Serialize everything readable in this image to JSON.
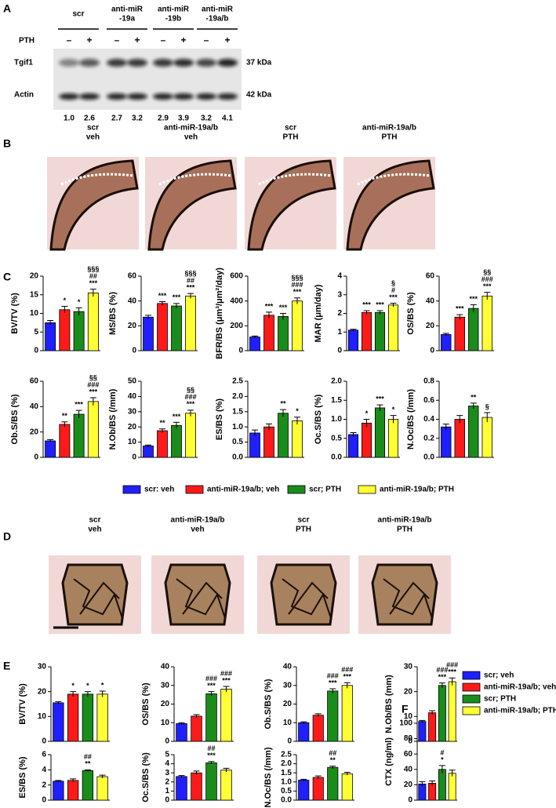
{
  "panel_labels": [
    "A",
    "B",
    "C",
    "D",
    "E",
    "F"
  ],
  "blot": {
    "groups": [
      [
        "scr"
      ],
      [
        "anti-miR",
        "-19a"
      ],
      [
        "anti-miR",
        "-19b"
      ],
      [
        "anti-miR",
        "-19a/b"
      ]
    ],
    "pth_label": "PTH",
    "pth_signs": [
      "–",
      "+",
      "–",
      "+",
      "–",
      "+",
      "–",
      "+"
    ],
    "rows": [
      "Tgif1",
      "Actin"
    ],
    "sizes": [
      "37 kDa",
      "42 kDa"
    ],
    "ratios": [
      "1.0",
      "2.6",
      "2.7",
      "3.2",
      "2.9",
      "3.9",
      "3.2",
      "4.1"
    ]
  },
  "histology_B": [
    [
      "scr",
      "veh"
    ],
    [
      "anti-miR-19a/b",
      "veh"
    ],
    [
      "scr",
      "PTH"
    ],
    [
      "anti-miR-19a/b",
      "PTH"
    ]
  ],
  "histology_D": [
    [
      "scr",
      "veh"
    ],
    [
      "anti-miR-19a/b",
      "veh"
    ],
    [
      "scr",
      "PTH"
    ],
    [
      "anti-miR-19a/b",
      "PTH"
    ]
  ],
  "colors": [
    "#1f1fff",
    "#ff1a1a",
    "#1a8c1a",
    "#ffff33"
  ],
  "legend_C": [
    "scr: veh",
    "anti-miR-19a/b; veh",
    "scr; PTH",
    "anti-miR-19a/b; PTH"
  ],
  "legend_E": [
    "scr; veh",
    "anti-miR-19a/b; veh",
    "scr; PTH",
    "anti-miR-19a/b; PTH"
  ],
  "chart_data": [
    {
      "type": "bar",
      "ylabel": "BV/TV (%)",
      "values": [
        7.5,
        11,
        10.5,
        15.5
      ],
      "errors": [
        0.6,
        0.9,
        1,
        1
      ],
      "ylim": [
        0,
        20
      ],
      "yticks": [
        0,
        5,
        10,
        15,
        20
      ],
      "annotations": [
        [],
        [
          "*"
        ],
        [
          "*"
        ],
        [
          "§§§",
          "##",
          "***"
        ]
      ]
    },
    {
      "type": "bar",
      "ylabel": "MS/BS (%)",
      "values": [
        27,
        38,
        36,
        44
      ],
      "errors": [
        1.5,
        1.5,
        2,
        2
      ],
      "ylim": [
        0,
        60
      ],
      "yticks": [
        0,
        20,
        40,
        60
      ],
      "annotations": [
        [],
        [
          "***"
        ],
        [
          "***"
        ],
        [
          "§§§",
          "##",
          "***"
        ]
      ]
    },
    {
      "type": "bar",
      "ylabel": "BFR/BS (μm³/μm²/day)",
      "values": [
        110,
        285,
        275,
        400
      ],
      "errors": [
        8,
        25,
        25,
        25
      ],
      "ylim": [
        0,
        600
      ],
      "yticks": [
        0,
        200,
        400,
        600
      ],
      "annotations": [
        [],
        [
          "***"
        ],
        [
          "***"
        ],
        [
          "§§§",
          "###",
          "***"
        ]
      ]
    },
    {
      "type": "bar",
      "ylabel": "MAR (μm/day)",
      "values": [
        1.1,
        2.05,
        2.05,
        2.45
      ],
      "errors": [
        0.05,
        0.1,
        0.1,
        0.1
      ],
      "ylim": [
        0,
        4
      ],
      "yticks": [
        0,
        1,
        2,
        3,
        4
      ],
      "annotations": [
        [],
        [
          "***"
        ],
        [
          "***"
        ],
        [
          "§",
          "#",
          "***"
        ]
      ]
    },
    {
      "type": "bar",
      "ylabel": "OS/BS (%)",
      "values": [
        13,
        27,
        34,
        44
      ],
      "errors": [
        1,
        2,
        3,
        3
      ],
      "ylim": [
        0,
        60
      ],
      "yticks": [
        0,
        20,
        40,
        60
      ],
      "annotations": [
        [],
        [
          "***"
        ],
        [
          "***"
        ],
        [
          "§§",
          "###",
          "***"
        ]
      ]
    },
    {
      "type": "bar",
      "ylabel": "Ob.S/BS (%)",
      "values": [
        13,
        26,
        34,
        44
      ],
      "errors": [
        1,
        2,
        3,
        3
      ],
      "ylim": [
        0,
        60
      ],
      "yticks": [
        0,
        20,
        40,
        60
      ],
      "annotations": [
        [],
        [
          "**"
        ],
        [
          "***"
        ],
        [
          "§§",
          "###",
          "***"
        ]
      ]
    },
    {
      "type": "bar",
      "ylabel": "N.Ob/BS (/mm)",
      "values": [
        7.5,
        17.5,
        21,
        29
      ],
      "errors": [
        0.6,
        1.2,
        2,
        2
      ],
      "ylim": [
        0,
        50
      ],
      "yticks": [
        0,
        10,
        20,
        30,
        40,
        50
      ],
      "annotations": [
        [],
        [
          "**"
        ],
        [
          "***"
        ],
        [
          "§§",
          "###",
          "***"
        ]
      ]
    },
    {
      "type": "bar",
      "ylabel": "ES/BS (%)",
      "values": [
        0.8,
        1.0,
        1.45,
        1.2
      ],
      "errors": [
        0.1,
        0.1,
        0.12,
        0.12
      ],
      "ylim": [
        0,
        2.5
      ],
      "yticks": [
        {
          "value": 0,
          "label": "0.0"
        },
        0.5,
        {
          "value": 1,
          "label": "1.0"
        },
        1.5,
        {
          "value": 2,
          "label": "2.0"
        },
        2.5
      ],
      "annotations": [
        [],
        [],
        [
          "**"
        ],
        [
          "*"
        ]
      ]
    },
    {
      "type": "bar",
      "ylabel": "Oc.S/BS (%)",
      "values": [
        0.6,
        0.9,
        1.3,
        1.0
      ],
      "errors": [
        0.05,
        0.1,
        0.08,
        0.1
      ],
      "ylim": [
        0,
        2
      ],
      "yticks": [
        {
          "value": 0,
          "label": "0.0"
        },
        0.5,
        {
          "value": 1,
          "label": "1.0"
        },
        1.5,
        {
          "value": 2,
          "label": "2.0"
        }
      ],
      "annotations": [
        [],
        [
          "*"
        ],
        [
          "***"
        ],
        [
          "*"
        ]
      ]
    },
    {
      "type": "bar",
      "ylabel": "N.Oc/BS (/mm)",
      "values": [
        0.32,
        0.4,
        0.54,
        0.42
      ],
      "errors": [
        0.03,
        0.04,
        0.03,
        0.05
      ],
      "ylim": [
        0,
        0.8
      ],
      "yticks": [
        {
          "value": 0,
          "label": "0.0"
        },
        0.2,
        0.4,
        0.6,
        0.8
      ],
      "annotations": [
        [],
        [],
        [
          "**"
        ],
        [
          "§"
        ]
      ]
    },
    {
      "type": "bar",
      "ylabel": "BV/TV (%)",
      "values": [
        15.5,
        19,
        19,
        19
      ],
      "errors": [
        0.5,
        1,
        1,
        1.2
      ],
      "ylim": [
        0,
        30
      ],
      "yticks": [
        0,
        10,
        20,
        30
      ],
      "annotations": [
        [],
        [
          "*"
        ],
        [
          "*"
        ],
        [
          "*"
        ]
      ]
    },
    {
      "type": "bar",
      "ylabel": "OS/BS (%)",
      "values": [
        9.5,
        13.5,
        25.5,
        28
      ],
      "errors": [
        0.5,
        0.8,
        1.2,
        1.5
      ],
      "ylim": [
        0,
        40
      ],
      "yticks": [
        0,
        10,
        20,
        30,
        40
      ],
      "annotations": [
        [],
        [],
        [
          "###",
          "***"
        ],
        [
          "###",
          "***"
        ]
      ]
    },
    {
      "type": "bar",
      "ylabel": "Ob.S/BS (%)",
      "values": [
        10,
        14,
        27,
        30
      ],
      "errors": [
        0.5,
        0.8,
        1.2,
        1.5
      ],
      "ylim": [
        0,
        40
      ],
      "yticks": [
        0,
        10,
        20,
        30,
        40
      ],
      "annotations": [
        [],
        [],
        [
          "###",
          "***"
        ],
        [
          "###",
          "***"
        ]
      ]
    },
    {
      "type": "bar",
      "ylabel": "N.Ob/BS (mm)",
      "values": [
        8,
        11.5,
        22.5,
        24
      ],
      "errors": [
        0.4,
        0.8,
        1,
        1.5
      ],
      "ylim": [
        0,
        30
      ],
      "yticks": [
        0,
        10,
        20,
        30
      ],
      "annotations": [
        [],
        [],
        [
          "###",
          "***"
        ],
        [
          "###",
          "***"
        ]
      ]
    },
    {
      "type": "bar",
      "ylabel": "ES/BS (%)",
      "values": [
        2.5,
        2.6,
        3.9,
        3.1
      ],
      "errors": [
        0.1,
        0.2,
        0.1,
        0.2
      ],
      "ylim": [
        0,
        6
      ],
      "yticks": [
        0,
        2,
        4,
        6
      ],
      "annotations": [
        [],
        [],
        [
          "##",
          "**"
        ],
        []
      ]
    },
    {
      "type": "bar",
      "ylabel": "Oc.S/BS (%)",
      "values": [
        2.6,
        3.0,
        4.1,
        3.3
      ],
      "errors": [
        0.1,
        0.2,
        0.15,
        0.2
      ],
      "ylim": [
        0,
        5
      ],
      "yticks": [
        0,
        1,
        2,
        3,
        4,
        5
      ],
      "annotations": [
        [],
        [],
        [
          "##",
          "***"
        ],
        []
      ]
    },
    {
      "type": "bar",
      "ylabel": "N.Oc/BS (/mm)",
      "values": [
        1.1,
        1.25,
        1.8,
        1.45
      ],
      "errors": [
        0.05,
        0.08,
        0.07,
        0.08
      ],
      "ylim": [
        0,
        2.5
      ],
      "yticks": [
        {
          "value": 0,
          "label": "0.0"
        },
        0.5,
        {
          "value": 1,
          "label": "1.0"
        },
        1.5,
        {
          "value": 2,
          "label": "2.0"
        },
        2.5
      ],
      "annotations": [
        [],
        [],
        [
          "##",
          "**"
        ],
        []
      ]
    },
    {
      "type": "bar",
      "ylabel": "CTX (ng/ml)",
      "values": [
        21,
        22,
        40,
        35
      ],
      "errors": [
        3,
        3,
        5,
        4
      ],
      "ylim": [
        0,
        100
      ],
      "yticks": [
        0,
        20,
        40,
        60,
        80,
        100
      ],
      "annotations": [
        [],
        [],
        [
          "#",
          "*"
        ],
        []
      ]
    }
  ]
}
